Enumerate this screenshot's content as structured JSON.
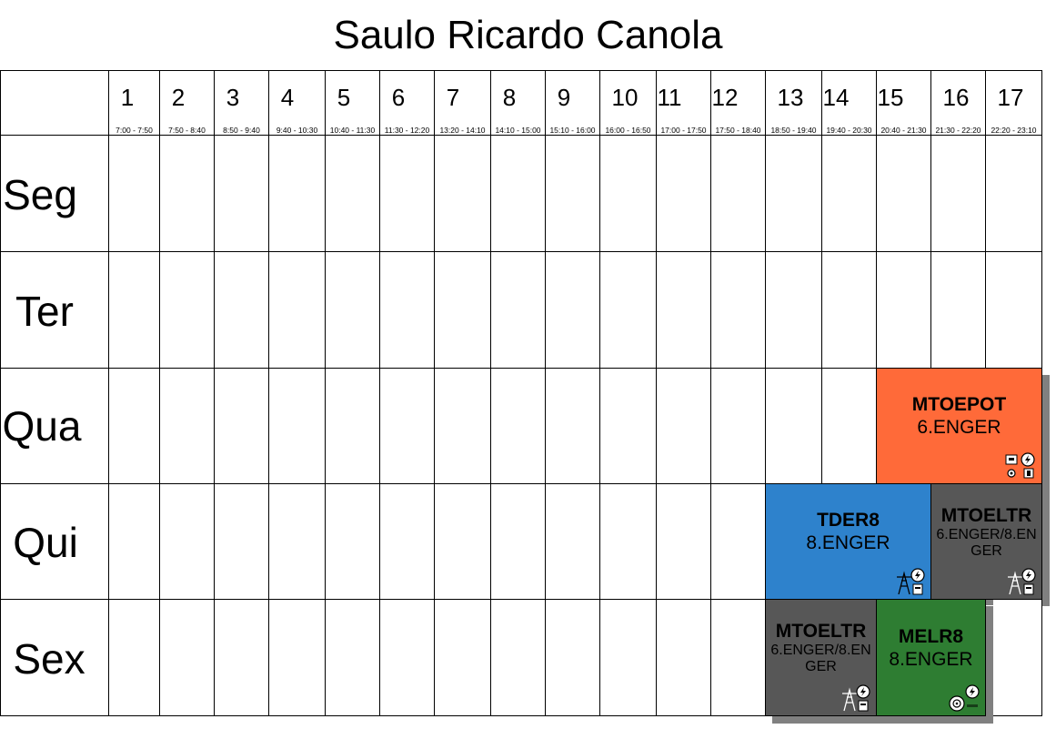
{
  "title": "Saulo Ricardo Canola",
  "slots": [
    {
      "num": "1",
      "time": "7:00 - 7:50"
    },
    {
      "num": "2",
      "time": "7:50 - 8:40"
    },
    {
      "num": "3",
      "time": "8:50 - 9:40"
    },
    {
      "num": "4",
      "time": "9:40 - 10:30"
    },
    {
      "num": "5",
      "time": "10:40 - 11:30"
    },
    {
      "num": "6",
      "time": "11:30 - 12:20"
    },
    {
      "num": "7",
      "time": "13:20 - 14:10"
    },
    {
      "num": "8",
      "time": "14:10 - 15:00"
    },
    {
      "num": "9",
      "time": "15:10 - 16:00"
    },
    {
      "num": "10",
      "time": "16:00 - 16:50"
    },
    {
      "num": "11",
      "time": "17:00 - 17:50"
    },
    {
      "num": "12",
      "time": "17:50 - 18:40"
    },
    {
      "num": "13",
      "time": "18:50 - 19:40"
    },
    {
      "num": "14",
      "time": "19:40 - 20:30"
    },
    {
      "num": "15",
      "time": "20:40 - 21:30"
    },
    {
      "num": "16",
      "time": "21:30 - 22:20"
    },
    {
      "num": "17",
      "time": "22:20 - 23:10"
    }
  ],
  "days": [
    "Seg",
    "Ter",
    "Qua",
    "Qui",
    "Sex"
  ],
  "classes": [
    {
      "code": "MTOEPOT",
      "group": "6.ENGER",
      "color": "#ff6a39",
      "icon": "power-plant-icon"
    },
    {
      "code": "TDER8",
      "group": "8.ENGER",
      "color": "#2e82cc",
      "icon": "transmission-tower-icon"
    },
    {
      "code": "MTOELTR",
      "group": "6.ENGER/8.ENGER",
      "color": "#575757",
      "icon": "transmission-tower-icon"
    },
    {
      "code": "MTOELTR",
      "group": "6.ENGER/8.ENGER",
      "color": "#575757",
      "icon": "transmission-tower-icon"
    },
    {
      "code": "MELR8",
      "group": "8.ENGER",
      "color": "#2e7d32",
      "icon": "electric-motor-icon"
    }
  ]
}
